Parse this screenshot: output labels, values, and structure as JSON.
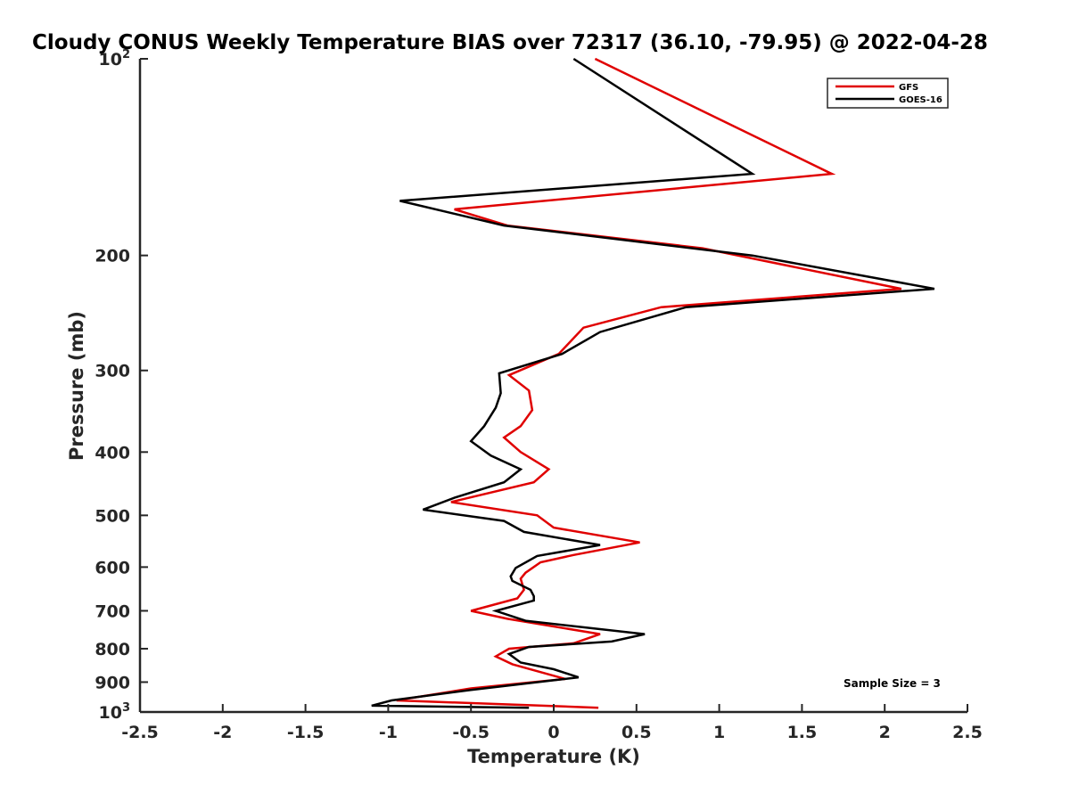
{
  "chart_data": {
    "type": "line",
    "title": "Cloudy CONUS Weekly Temperature BIAS over 72317 (36.10, -79.95) @ 2022-04-28",
    "xlabel": "Temperature (K)",
    "ylabel": "Pressure (mb)",
    "xlim": [
      -2.5,
      2.5
    ],
    "ylim": [
      100,
      1000
    ],
    "y_scale": "log",
    "y_reversed": true,
    "grid": false,
    "legend_position": "top-right",
    "x_ticks": [
      "-2.5",
      "-2",
      "-1.5",
      "-1",
      "-0.5",
      "0",
      "0.5",
      "1",
      "1.5",
      "2",
      "2.5"
    ],
    "x_tick_values": [
      -2.5,
      -2,
      -1.5,
      -1,
      -0.5,
      0,
      0.5,
      1,
      1.5,
      2,
      2.5
    ],
    "y_ticks": [
      {
        "value": 100,
        "base": "10",
        "exp": "2"
      },
      {
        "value": 200,
        "label": "200"
      },
      {
        "value": 300,
        "label": "300"
      },
      {
        "value": 400,
        "label": "400"
      },
      {
        "value": 500,
        "label": "500"
      },
      {
        "value": 600,
        "label": "600"
      },
      {
        "value": 700,
        "label": "700"
      },
      {
        "value": 800,
        "label": "800"
      },
      {
        "value": 900,
        "label": "900"
      },
      {
        "value": 1000,
        "base": "10",
        "exp": "3"
      }
    ],
    "annotation": "Sample Size = 3",
    "series": [
      {
        "name": "GFS",
        "color": "#e00000",
        "points": [
          [
            0.25,
            100
          ],
          [
            1.68,
            150
          ],
          [
            -0.6,
            170
          ],
          [
            -0.28,
            180
          ],
          [
            0.9,
            195
          ],
          [
            2.1,
            225
          ],
          [
            0.65,
            240
          ],
          [
            0.18,
            258
          ],
          [
            0.03,
            283
          ],
          [
            -0.27,
            305
          ],
          [
            -0.15,
            322
          ],
          [
            -0.13,
            345
          ],
          [
            -0.2,
            365
          ],
          [
            -0.3,
            380
          ],
          [
            -0.2,
            400
          ],
          [
            -0.03,
            425
          ],
          [
            -0.12,
            445
          ],
          [
            -0.62,
            477
          ],
          [
            -0.1,
            500
          ],
          [
            0.0,
            522
          ],
          [
            0.52,
            550
          ],
          [
            0.12,
            575
          ],
          [
            -0.08,
            590
          ],
          [
            -0.17,
            612
          ],
          [
            -0.2,
            625
          ],
          [
            -0.18,
            650
          ],
          [
            -0.22,
            670
          ],
          [
            -0.5,
            700
          ],
          [
            -0.28,
            720
          ],
          [
            0.28,
            760
          ],
          [
            0.12,
            785
          ],
          [
            -0.27,
            800
          ],
          [
            -0.35,
            822
          ],
          [
            -0.25,
            845
          ],
          [
            0.07,
            890
          ],
          [
            -0.5,
            920
          ],
          [
            -0.95,
            960
          ],
          [
            0.27,
            985
          ]
        ]
      },
      {
        "name": "GOES-16",
        "color": "#000000",
        "points": [
          [
            0.12,
            100
          ],
          [
            1.2,
            150
          ],
          [
            -0.93,
            165
          ],
          [
            -0.3,
            180
          ],
          [
            1.2,
            200
          ],
          [
            2.3,
            225
          ],
          [
            0.8,
            240
          ],
          [
            0.28,
            262
          ],
          [
            0.05,
            283
          ],
          [
            -0.33,
            303
          ],
          [
            -0.32,
            325
          ],
          [
            -0.35,
            342
          ],
          [
            -0.42,
            365
          ],
          [
            -0.5,
            385
          ],
          [
            -0.38,
            405
          ],
          [
            -0.2,
            425
          ],
          [
            -0.3,
            445
          ],
          [
            -0.6,
            470
          ],
          [
            -0.79,
            490
          ],
          [
            -0.3,
            510
          ],
          [
            -0.18,
            530
          ],
          [
            0.28,
            555
          ],
          [
            -0.1,
            577
          ],
          [
            -0.23,
            602
          ],
          [
            -0.26,
            620
          ],
          [
            -0.25,
            630
          ],
          [
            -0.14,
            650
          ],
          [
            -0.12,
            665
          ],
          [
            -0.12,
            675
          ],
          [
            -0.35,
            700
          ],
          [
            -0.17,
            725
          ],
          [
            0.55,
            760
          ],
          [
            0.35,
            780
          ],
          [
            -0.15,
            795
          ],
          [
            -0.27,
            815
          ],
          [
            -0.2,
            840
          ],
          [
            0.0,
            860
          ],
          [
            0.15,
            885
          ],
          [
            -0.5,
            925
          ],
          [
            -0.98,
            960
          ],
          [
            -1.1,
            978
          ],
          [
            -0.15,
            985
          ]
        ]
      }
    ]
  }
}
